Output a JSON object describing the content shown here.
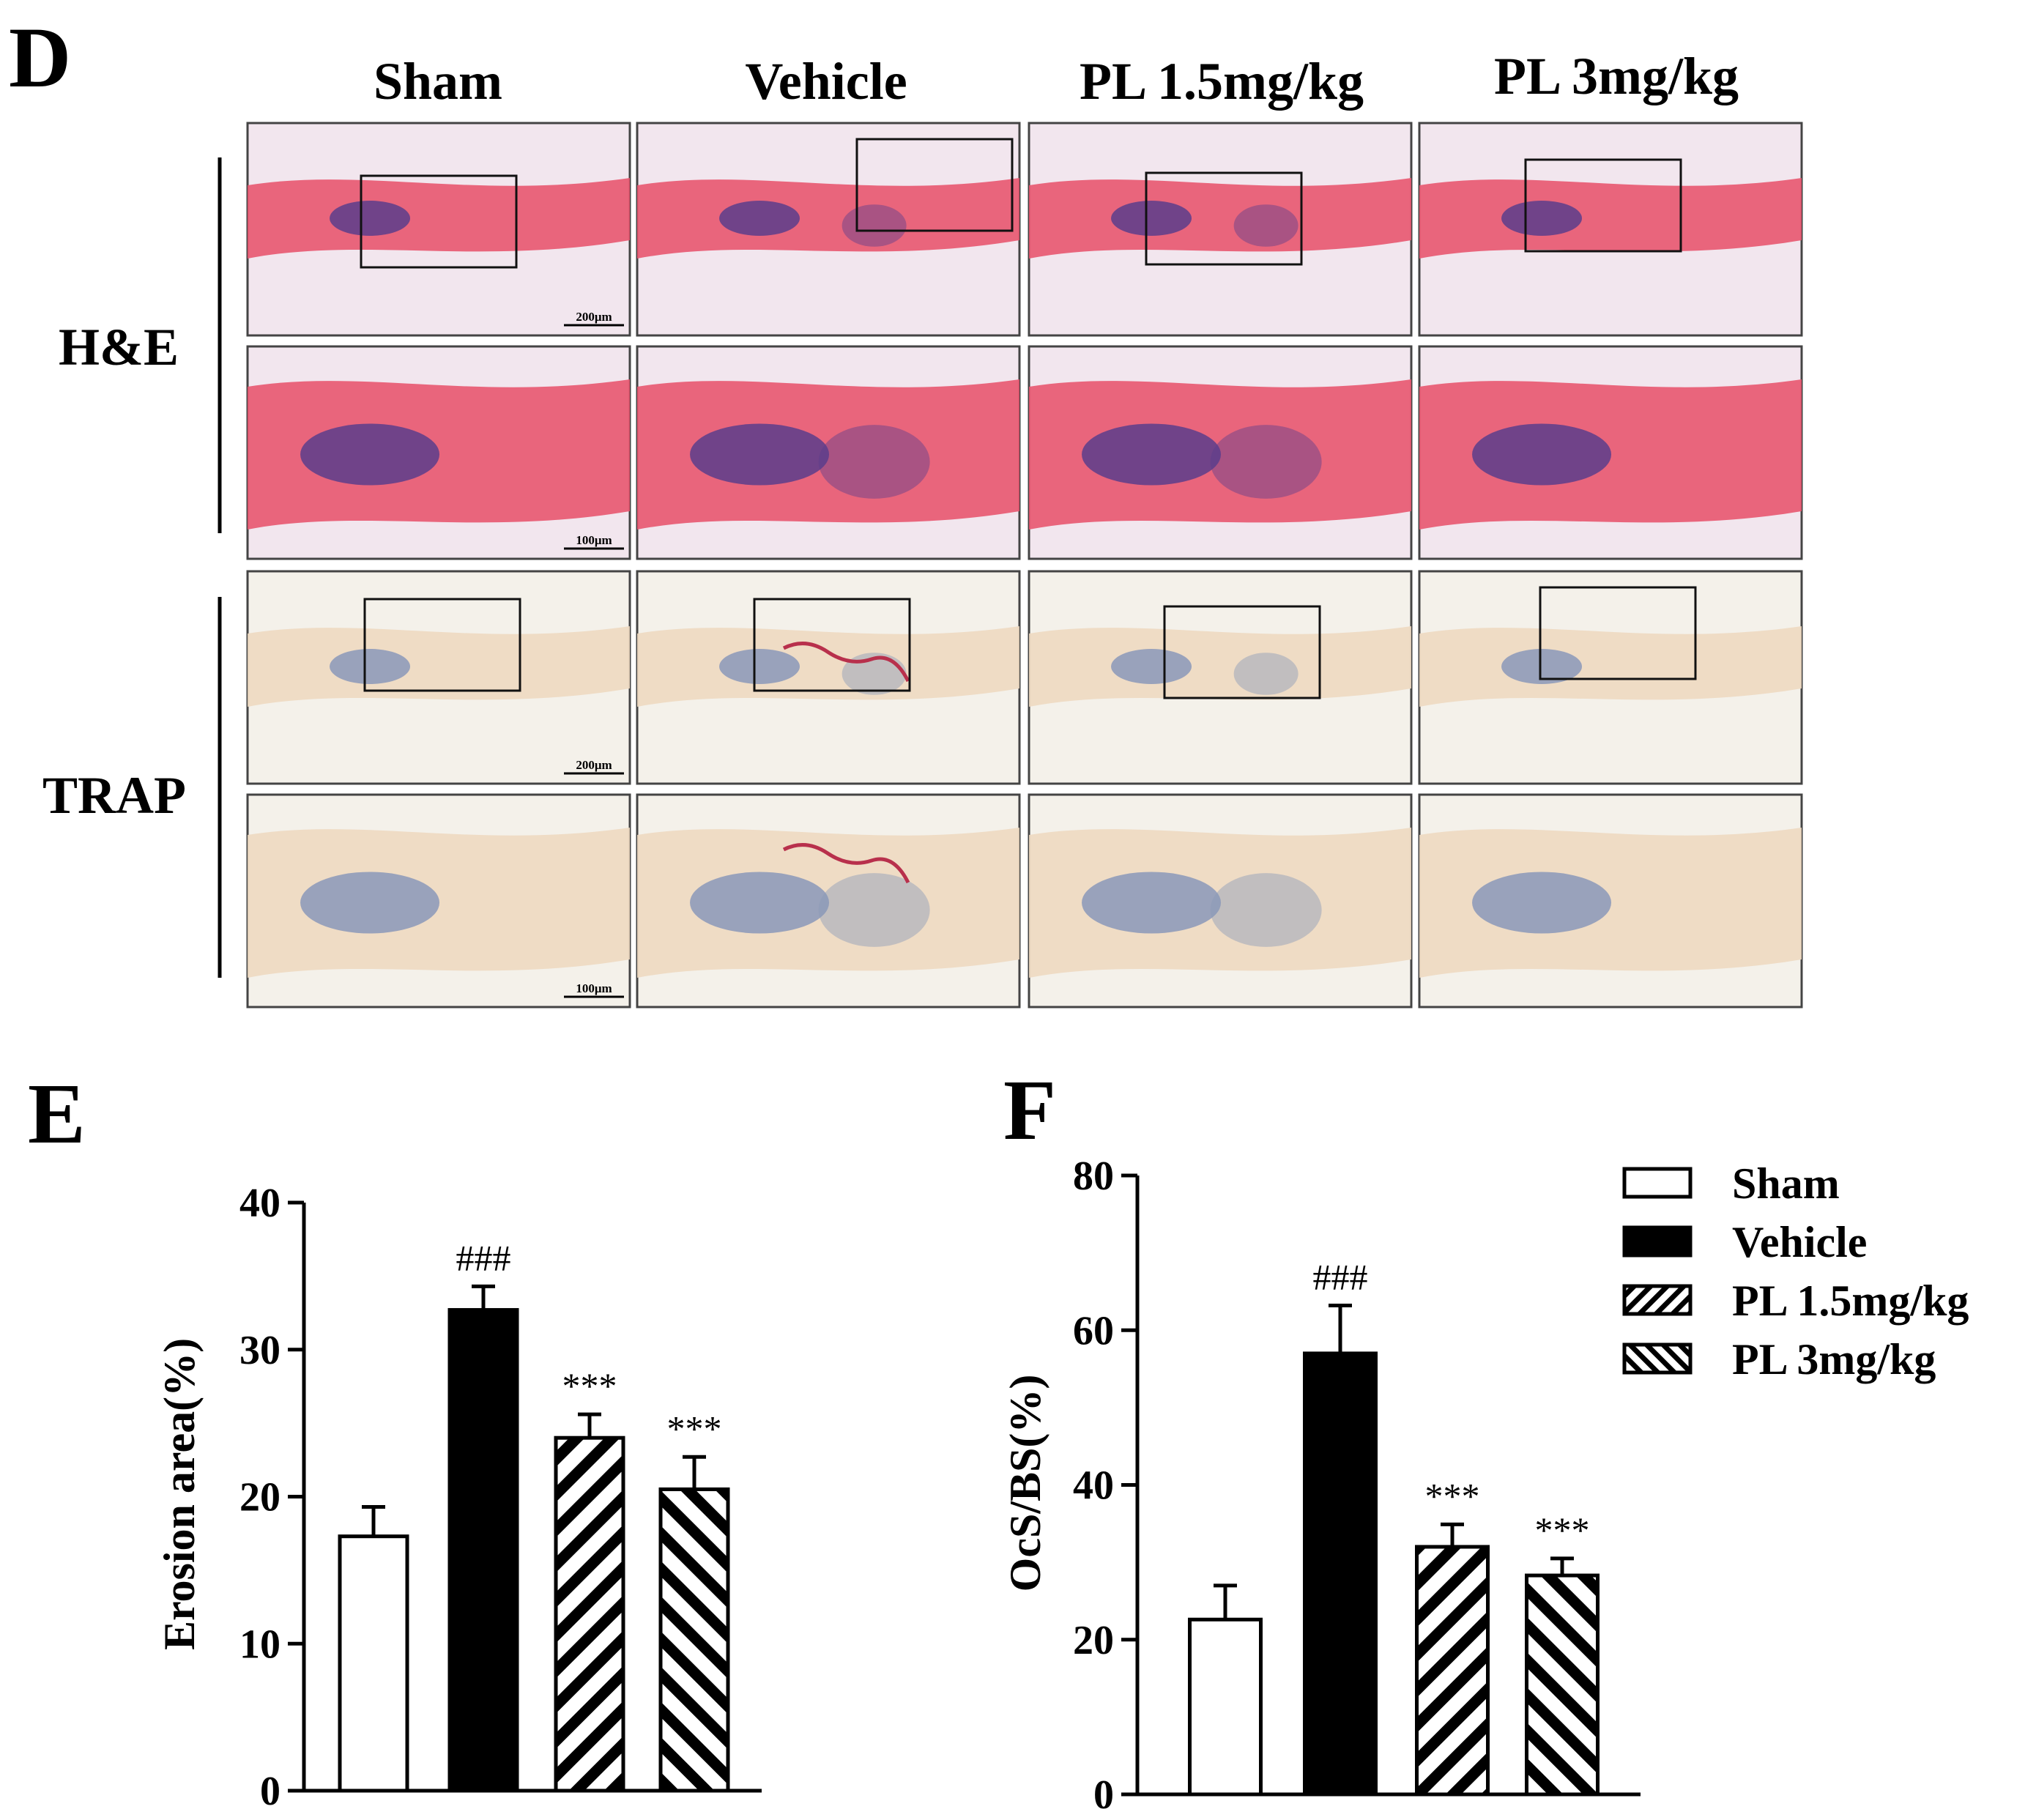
{
  "panel_labels": {
    "d": "D",
    "e": "E",
    "f": "F"
  },
  "histology": {
    "columns": [
      "Sham",
      "Vehicle",
      "PL 1.5mg/kg",
      "PL 3mg/kg"
    ],
    "stains": [
      "H&E",
      "TRAP"
    ],
    "scale_bars": [
      "200μm",
      "100μm",
      "200μm",
      "100μm"
    ],
    "stain_colors": {
      "he_tissue": "#e8566f",
      "he_marrow": "#5a3d8c",
      "he_background": "#f2e6ee",
      "trap_tissue": "#eed9c1",
      "trap_marrow": "#8a98b8",
      "trap_background": "#f4f1ea",
      "trap_osteoclast": "#b8304c"
    }
  },
  "chart_data": [
    {
      "type": "bar",
      "categories": [
        "Sham",
        "Vehicle",
        "PL 1.5mg/kg",
        "PL 3mg/kg"
      ],
      "values": [
        17.3,
        32.7,
        24.0,
        20.5
      ],
      "errors": [
        2.0,
        1.6,
        1.6,
        2.2
      ],
      "annotations": [
        "",
        "###",
        "***",
        "***"
      ],
      "title": "",
      "xlabel": "",
      "ylabel": "Erosion area(%)",
      "ylim": [
        0,
        40
      ],
      "yticks": [
        "0",
        "10",
        "20",
        "30",
        "40"
      ],
      "grid": false
    },
    {
      "type": "bar",
      "categories": [
        "Sham",
        "Vehicle",
        "PL 1.5mg/kg",
        "PL 3mg/kg"
      ],
      "values": [
        22.6,
        57.0,
        32.0,
        28.3
      ],
      "errors": [
        4.4,
        6.2,
        2.9,
        2.2
      ],
      "annotations": [
        "",
        "###",
        "***",
        "***"
      ],
      "title": "",
      "xlabel": "",
      "ylabel": "OcS/BS(%)",
      "ylim": [
        0,
        80
      ],
      "yticks": [
        "0",
        "20",
        "40",
        "60",
        "80"
      ],
      "grid": false
    }
  ],
  "legend": {
    "placement": "top-right",
    "entries": [
      {
        "label": "Sham",
        "fill": "open"
      },
      {
        "label": "Vehicle",
        "fill": "solid"
      },
      {
        "label": "PL 1.5mg/kg",
        "fill": "hatch-forward"
      },
      {
        "label": "PL 3mg/kg",
        "fill": "hatch-backward"
      }
    ]
  }
}
